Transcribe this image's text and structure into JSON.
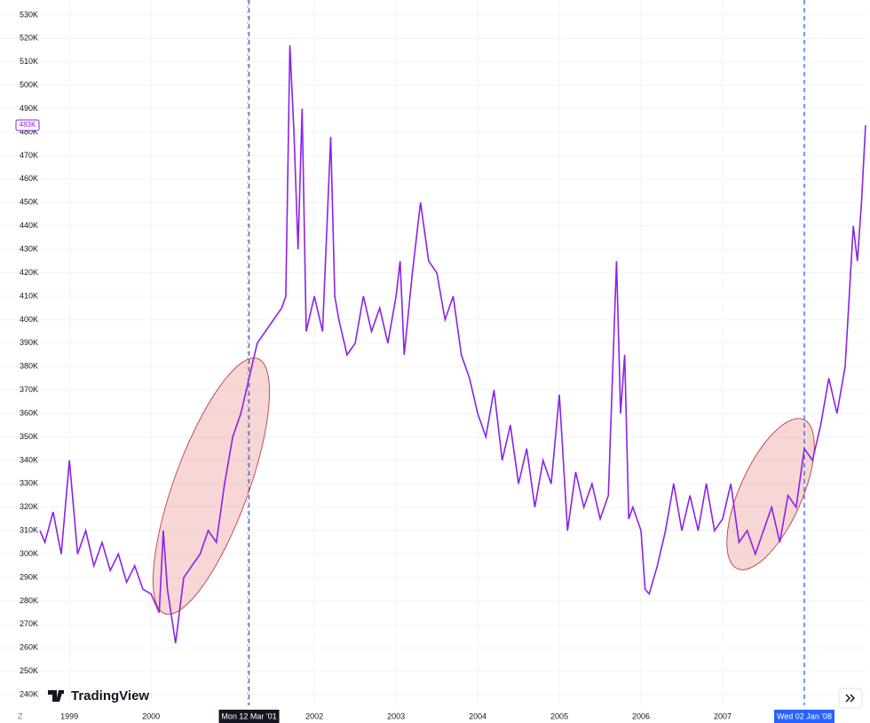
{
  "chart_data": {
    "type": "line",
    "brand": "TradingView",
    "scale_button": "Z",
    "x": [
      1998.64,
      1998.7,
      1998.8,
      1998.9,
      1999.0,
      1999.1,
      1999.2,
      1999.3,
      1999.4,
      1999.5,
      1999.6,
      1999.7,
      1999.8,
      1999.9,
      2000.0,
      2000.1,
      2000.15,
      2000.2,
      2000.3,
      2000.4,
      2000.5,
      2000.6,
      2000.7,
      2000.8,
      2000.9,
      2001.0,
      2001.1,
      2001.2,
      2001.3,
      2001.4,
      2001.5,
      2001.6,
      2001.65,
      2001.7,
      2001.75,
      2001.8,
      2001.85,
      2001.9,
      2002.0,
      2002.1,
      2002.2,
      2002.25,
      2002.3,
      2002.4,
      2002.5,
      2002.6,
      2002.7,
      2002.8,
      2002.9,
      2003.0,
      2003.05,
      2003.1,
      2003.2,
      2003.3,
      2003.4,
      2003.5,
      2003.6,
      2003.7,
      2003.8,
      2003.9,
      2004.0,
      2004.1,
      2004.2,
      2004.3,
      2004.4,
      2004.5,
      2004.6,
      2004.7,
      2004.8,
      2004.9,
      2005.0,
      2005.1,
      2005.2,
      2005.3,
      2005.4,
      2005.5,
      2005.6,
      2005.7,
      2005.75,
      2005.8,
      2005.85,
      2005.9,
      2006.0,
      2006.05,
      2006.1,
      2006.2,
      2006.3,
      2006.4,
      2006.5,
      2006.6,
      2006.7,
      2006.8,
      2006.9,
      2007.0,
      2007.1,
      2007.2,
      2007.3,
      2007.4,
      2007.5,
      2007.6,
      2007.7,
      2007.8,
      2007.9,
      2008.0,
      2008.1,
      2008.2,
      2008.3,
      2008.4,
      2008.5,
      2008.6,
      2008.65,
      2008.7,
      2008.75
    ],
    "color": "#8b22e8",
    "values": [
      310000,
      305000,
      318000,
      300000,
      340000,
      300000,
      310000,
      295000,
      305000,
      293000,
      300000,
      288000,
      295000,
      285000,
      283000,
      275000,
      310000,
      285000,
      262000,
      290000,
      295000,
      300000,
      310000,
      305000,
      330000,
      350000,
      360000,
      375000,
      390000,
      395000,
      400000,
      405000,
      410000,
      517000,
      480000,
      430000,
      490000,
      395000,
      410000,
      395000,
      478000,
      410000,
      400000,
      385000,
      390000,
      410000,
      395000,
      405000,
      390000,
      410000,
      425000,
      385000,
      420000,
      450000,
      425000,
      420000,
      400000,
      410000,
      385000,
      375000,
      360000,
      350000,
      370000,
      340000,
      355000,
      330000,
      345000,
      320000,
      340000,
      330000,
      368000,
      310000,
      335000,
      320000,
      330000,
      315000,
      325000,
      425000,
      360000,
      385000,
      315000,
      320000,
      310000,
      285000,
      283000,
      295000,
      310000,
      330000,
      310000,
      325000,
      310000,
      330000,
      310000,
      315000,
      330000,
      305000,
      310000,
      300000,
      310000,
      320000,
      305000,
      325000,
      320000,
      345000,
      340000,
      355000,
      375000,
      360000,
      380000,
      440000,
      425000,
      450000,
      483000
    ],
    "last_value_label": "483K",
    "xlim": [
      1998.15,
      2008.75
    ],
    "xticks": [
      1999,
      2000,
      2002,
      2003,
      2004,
      2005,
      2006,
      2007
    ],
    "ylim": [
      235500,
      536400
    ],
    "yticks": [
      {
        "value": 240000,
        "label": "240K"
      },
      {
        "value": 250000,
        "label": "250K"
      },
      {
        "value": 260000,
        "label": "260K"
      },
      {
        "value": 270000,
        "label": "270K"
      },
      {
        "value": 280000,
        "label": "280K"
      },
      {
        "value": 290000,
        "label": "290K"
      },
      {
        "value": 300000,
        "label": "300K"
      },
      {
        "value": 310000,
        "label": "310K"
      },
      {
        "value": 320000,
        "label": "320K"
      },
      {
        "value": 330000,
        "label": "330K"
      },
      {
        "value": 340000,
        "label": "340K"
      },
      {
        "value": 350000,
        "label": "350K"
      },
      {
        "value": 360000,
        "label": "360K"
      },
      {
        "value": 370000,
        "label": "370K"
      },
      {
        "value": 380000,
        "label": "380K"
      },
      {
        "value": 390000,
        "label": "390K"
      },
      {
        "value": 400000,
        "label": "400K"
      },
      {
        "value": 410000,
        "label": "410K"
      },
      {
        "value": 420000,
        "label": "420K"
      },
      {
        "value": 430000,
        "label": "430K"
      },
      {
        "value": 440000,
        "label": "440K"
      },
      {
        "value": 450000,
        "label": "450K"
      },
      {
        "value": 460000,
        "label": "460K"
      },
      {
        "value": 470000,
        "label": "470K"
      },
      {
        "value": 480000,
        "label": "480K"
      },
      {
        "value": 490000,
        "label": "490K"
      },
      {
        "value": 500000,
        "label": "500K"
      },
      {
        "value": 510000,
        "label": "510K"
      },
      {
        "value": 520000,
        "label": "520K"
      },
      {
        "value": 530000,
        "label": "530K"
      }
    ],
    "grid": true,
    "crosshairs": [
      {
        "value": 2001.2,
        "label": "Mon 12 Mar '01"
      },
      {
        "value": 2008.0,
        "label": "Wed 02 Jan '08"
      }
    ]
  }
}
